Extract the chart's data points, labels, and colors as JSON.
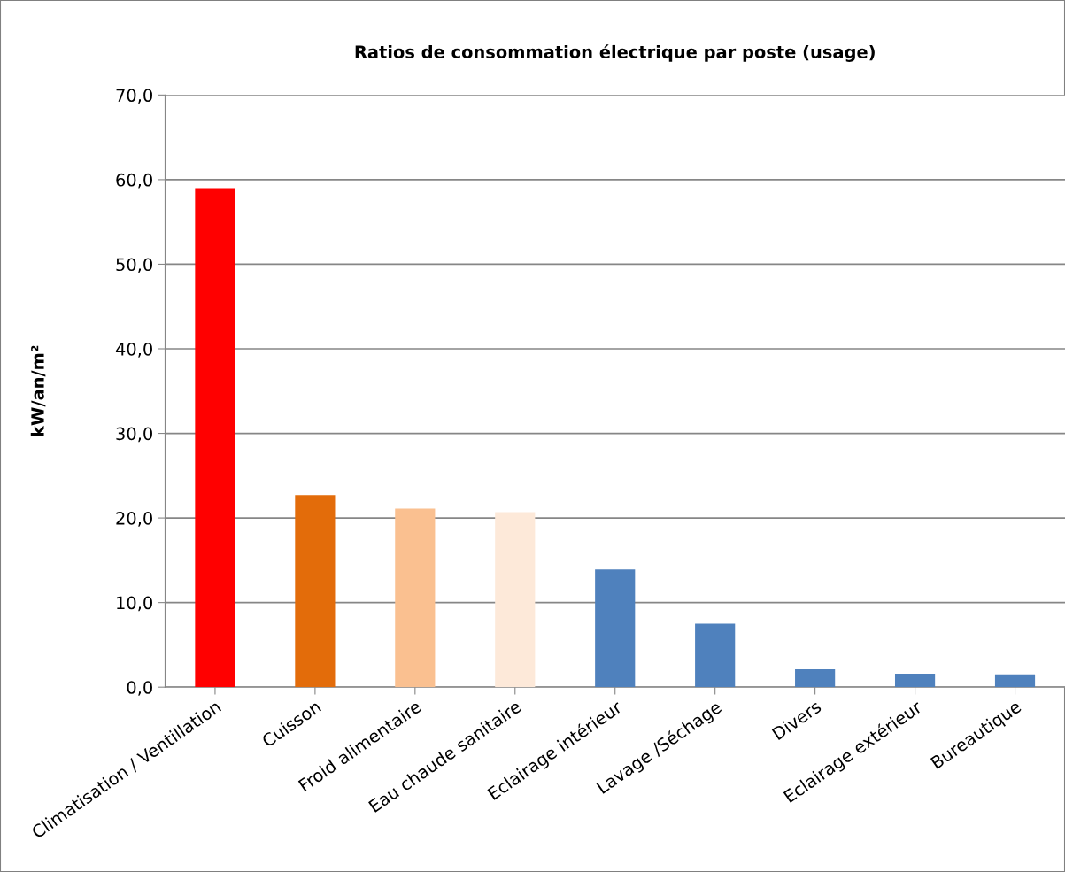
{
  "chart_data": {
    "type": "bar",
    "title": "Ratios de consommation électrique par poste (usage)",
    "ylabel": "kW/an/m²",
    "categories": [
      "Climatisation / Ventillation",
      "Cuisson",
      "Froid alimentaire",
      "Eau chaude sanitaire",
      "Eclairage intérieur",
      "Lavage /Séchage",
      "Divers",
      "Eclairage extérieur",
      "Bureautique"
    ],
    "values": [
      59.0,
      22.7,
      21.1,
      20.7,
      13.9,
      7.5,
      2.1,
      1.6,
      1.5
    ],
    "colors": [
      "#ff0000",
      "#e36c0a",
      "#fac090",
      "#fde9d9",
      "#4f81bd",
      "#4f81bd",
      "#4f81bd",
      "#4f81bd",
      "#4f81bd"
    ],
    "ylim": [
      0,
      70
    ],
    "yticks": [
      {
        "value": 0,
        "label": "0,0"
      },
      {
        "value": 10,
        "label": "10,0"
      },
      {
        "value": 20,
        "label": "20,0"
      },
      {
        "value": 30,
        "label": "30,0"
      },
      {
        "value": 40,
        "label": "40,0"
      },
      {
        "value": 50,
        "label": "50,0"
      },
      {
        "value": 60,
        "label": "60,0"
      },
      {
        "value": 70,
        "label": "70,0"
      }
    ],
    "grid": "y",
    "legend": false
  }
}
